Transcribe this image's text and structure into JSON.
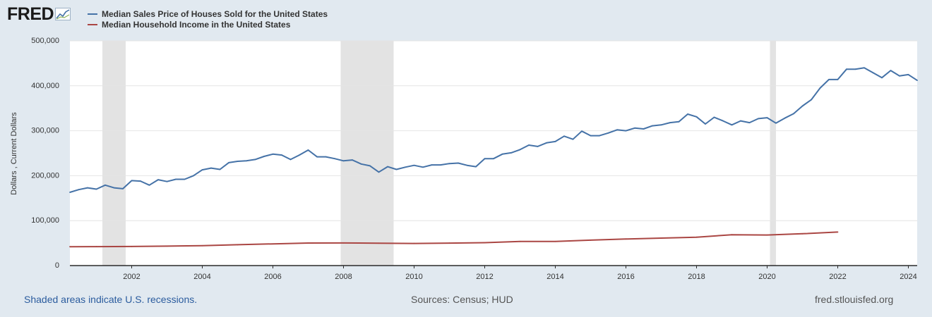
{
  "header": {
    "logo_text": "FRED",
    "logo_icon": "chart-line-icon"
  },
  "legend": [
    {
      "label": "Median Sales Price of Houses Sold for the United States",
      "color": "#4572a7"
    },
    {
      "label": "Median Household Income in the United States",
      "color": "#aa4643"
    }
  ],
  "footer": {
    "recession_note": "Shaded areas indicate U.S. recessions.",
    "sources": "Sources: Census; HUD",
    "site": "fred.stlouisfed.org"
  },
  "chart_data": {
    "type": "line",
    "title": "",
    "xlabel": "",
    "ylabel": "Dollars , Current Dollars",
    "xlim": [
      2000.25,
      2024.25
    ],
    "ylim": [
      0,
      500000
    ],
    "y_ticks": [
      0,
      100000,
      200000,
      300000,
      400000,
      500000
    ],
    "y_tick_labels": [
      "0",
      "100,000",
      "200,000",
      "300,000",
      "400,000",
      "500,000"
    ],
    "x_ticks": [
      2002,
      2004,
      2006,
      2008,
      2010,
      2012,
      2014,
      2016,
      2018,
      2020,
      2022,
      2024
    ],
    "grid": true,
    "recessions": [
      [
        2001.17,
        2001.83
      ],
      [
        2007.92,
        2009.42
      ],
      [
        2020.08,
        2020.25
      ]
    ],
    "series": [
      {
        "name": "Median Sales Price of Houses Sold for the United States",
        "color": "#4572a7",
        "x": [
          2000.25,
          2000.5,
          2000.75,
          2001.0,
          2001.25,
          2001.5,
          2001.75,
          2002.0,
          2002.25,
          2002.5,
          2002.75,
          2003.0,
          2003.25,
          2003.5,
          2003.75,
          2004.0,
          2004.25,
          2004.5,
          2004.75,
          2005.0,
          2005.25,
          2005.5,
          2005.75,
          2006.0,
          2006.25,
          2006.5,
          2006.75,
          2007.0,
          2007.25,
          2007.5,
          2007.75,
          2008.0,
          2008.25,
          2008.5,
          2008.75,
          2009.0,
          2009.25,
          2009.5,
          2009.75,
          2010.0,
          2010.25,
          2010.5,
          2010.75,
          2011.0,
          2011.25,
          2011.5,
          2011.75,
          2012.0,
          2012.25,
          2012.5,
          2012.75,
          2013.0,
          2013.25,
          2013.5,
          2013.75,
          2014.0,
          2014.25,
          2014.5,
          2014.75,
          2015.0,
          2015.25,
          2015.5,
          2015.75,
          2016.0,
          2016.25,
          2016.5,
          2016.75,
          2017.0,
          2017.25,
          2017.5,
          2017.75,
          2018.0,
          2018.25,
          2018.5,
          2018.75,
          2019.0,
          2019.25,
          2019.5,
          2019.75,
          2020.0,
          2020.25,
          2020.5,
          2020.75,
          2021.0,
          2021.25,
          2021.5,
          2021.75,
          2022.0,
          2022.25,
          2022.5,
          2022.75,
          2023.0,
          2023.25,
          2023.5,
          2023.75,
          2024.0,
          2024.25
        ],
        "values": [
          163000,
          169000,
          173000,
          170000,
          179000,
          173000,
          171000,
          189000,
          188000,
          179000,
          191000,
          187000,
          192000,
          192000,
          200000,
          213000,
          217000,
          214000,
          229000,
          232000,
          233000,
          236000,
          243000,
          248000,
          246000,
          236000,
          246000,
          257000,
          242000,
          242000,
          238000,
          233000,
          235000,
          226000,
          222000,
          208000,
          220000,
          214000,
          219000,
          223000,
          219000,
          224000,
          224000,
          227000,
          228000,
          223000,
          220000,
          238000,
          238000,
          248000,
          251000,
          258000,
          268000,
          265000,
          273000,
          276000,
          288000,
          281000,
          299000,
          289000,
          289000,
          295000,
          302000,
          300000,
          306000,
          304000,
          311000,
          313000,
          318000,
          320000,
          337000,
          331000,
          315000,
          330000,
          322000,
          313000,
          322000,
          318000,
          327000,
          329000,
          317000,
          328000,
          338000,
          355000,
          369000,
          395000,
          414000,
          414000,
          437000,
          437000,
          440000,
          429000,
          418000,
          434000,
          422000,
          425000,
          412000
        ]
      },
      {
        "name": "Median Household Income in the United States",
        "color": "#aa4643",
        "x": [
          2000.25,
          2001,
          2002,
          2003,
          2004,
          2005,
          2006,
          2007,
          2008,
          2009,
          2010,
          2011,
          2012,
          2013,
          2014,
          2015,
          2016,
          2017,
          2018,
          2019,
          2020,
          2021,
          2022
        ],
        "values": [
          41990,
          42228,
          42409,
          43318,
          44334,
          46326,
          48201,
          50233,
          50303,
          49777,
          49276,
          50054,
          51017,
          53585,
          53657,
          56516,
          59039,
          61136,
          63179,
          68703,
          68010,
          70784,
          74580
        ]
      }
    ]
  }
}
